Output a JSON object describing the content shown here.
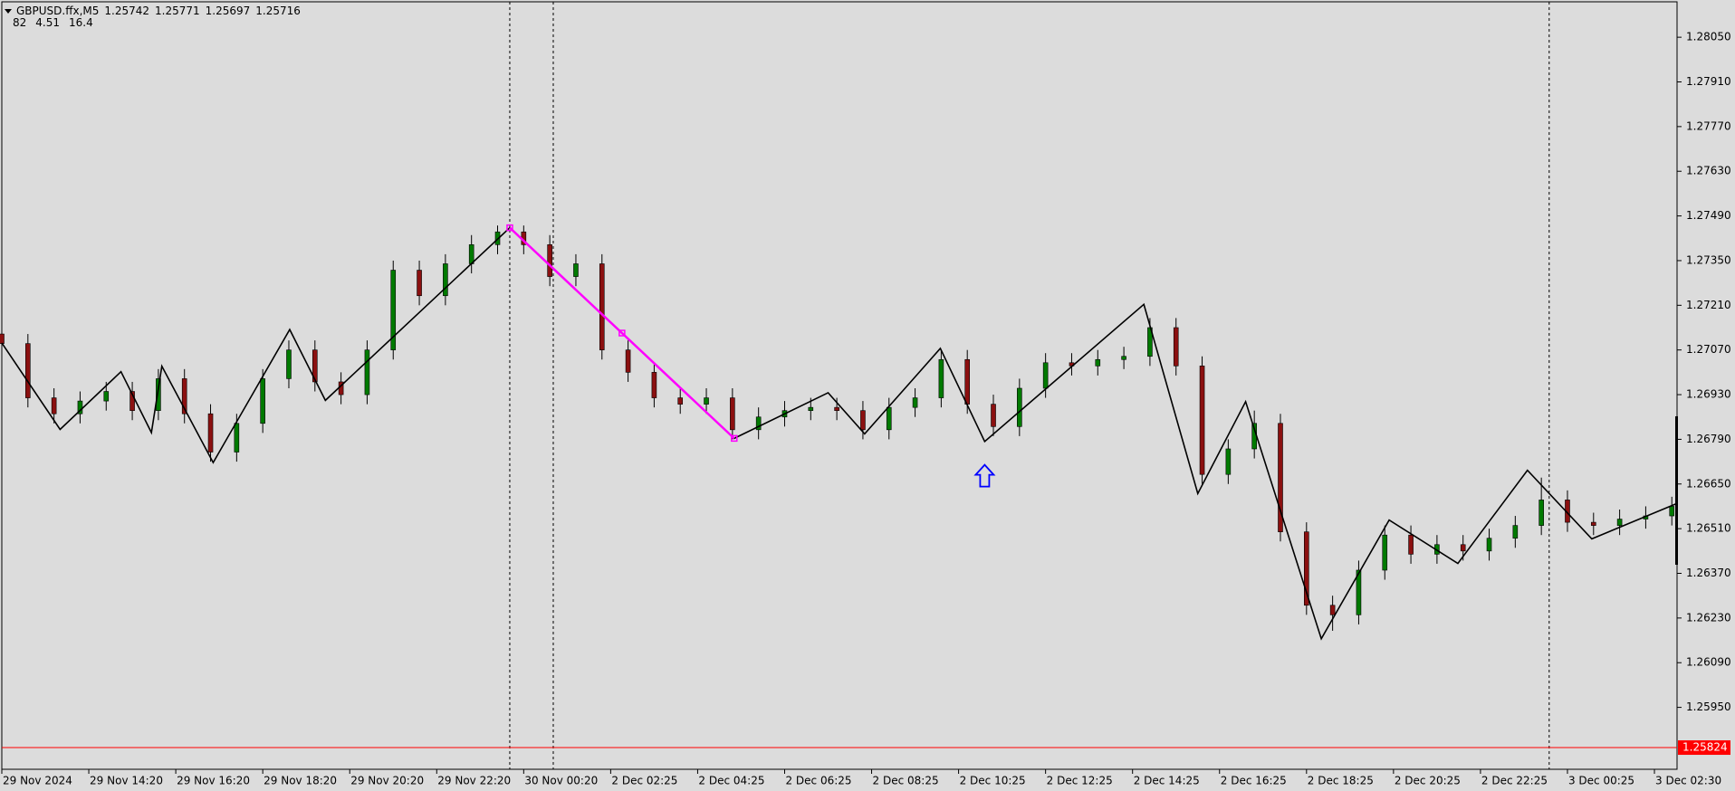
{
  "chart_data": {
    "type": "candlestick",
    "symbol": "GBPUSD.ffx,M5",
    "ohlc_text": [
      "1.25742",
      "1.25771",
      "1.25697",
      "1.25716"
    ],
    "indicator_text": [
      "82",
      "4.51",
      "16.4"
    ],
    "x": [
      0,
      0.3,
      0.6,
      0.9,
      1.2,
      1.5,
      1.8,
      2.1,
      2.4,
      2.7,
      3,
      3.3,
      3.6,
      3.9,
      4.2,
      4.5,
      4.8,
      5.1,
      5.4,
      5.7,
      6,
      6.3,
      6.6,
      6.9,
      7.2,
      7.5,
      7.8,
      8.1,
      8.4,
      8.7,
      9,
      9.3,
      9.6,
      9.9,
      10.2,
      10.5,
      10.8,
      11.1,
      11.4,
      11.7,
      12,
      12.3,
      12.6,
      12.9,
      13.2,
      13.5,
      13.8,
      14.1,
      14.4,
      14.7,
      15,
      15.3,
      15.6,
      15.9,
      16.2,
      16.5,
      16.8,
      17.1,
      17.4,
      17.7,
      18,
      18.3,
      18.6,
      18.9,
      19.2
    ],
    "open": [
      1.2712,
      1.2709,
      1.2692,
      1.2687,
      1.2691,
      1.2694,
      1.2688,
      1.2698,
      1.2687,
      1.2675,
      1.2684,
      1.2698,
      1.2707,
      1.2697,
      1.2693,
      1.2707,
      1.2732,
      1.2724,
      1.2734,
      1.274,
      1.2744,
      1.274,
      1.273,
      1.2734,
      1.2707,
      1.27,
      1.2692,
      1.269,
      1.2692,
      1.2682,
      1.2686,
      1.2688,
      1.2689,
      1.2688,
      1.2682,
      1.2689,
      1.2692,
      1.2704,
      1.269,
      1.2683,
      1.2695,
      1.2703,
      1.2702,
      1.2704,
      1.2705,
      1.2714,
      1.2702,
      1.2668,
      1.2676,
      1.2684,
      1.265,
      1.2627,
      1.2624,
      1.2638,
      1.2649,
      1.2643,
      1.2646,
      1.2644,
      1.2648,
      1.2652,
      1.266,
      1.2653,
      1.2652,
      1.2654,
      1.2655
    ],
    "high": [
      1.2715,
      1.2712,
      1.2695,
      1.2694,
      1.2697,
      1.2697,
      1.2701,
      1.2701,
      1.269,
      1.2687,
      1.2701,
      1.271,
      1.271,
      1.27,
      1.271,
      1.2735,
      1.2735,
      1.2737,
      1.2743,
      1.2746,
      1.2746,
      1.2743,
      1.2737,
      1.2737,
      1.271,
      1.2703,
      1.2695,
      1.2695,
      1.2695,
      1.2689,
      1.2691,
      1.2692,
      1.2692,
      1.2691,
      1.2692,
      1.2695,
      1.2707,
      1.2707,
      1.2693,
      1.2698,
      1.2706,
      1.2706,
      1.2707,
      1.2708,
      1.2717,
      1.2717,
      1.2705,
      1.2679,
      1.2688,
      1.2687,
      1.2653,
      1.263,
      1.2641,
      1.2652,
      1.2652,
      1.2649,
      1.2649,
      1.2651,
      1.2655,
      1.2667,
      1.2663,
      1.2656,
      1.2657,
      1.2658,
      1.2661
    ],
    "low": [
      1.2706,
      1.2689,
      1.2684,
      1.2684,
      1.2688,
      1.2685,
      1.2685,
      1.2684,
      1.2672,
      1.2672,
      1.2681,
      1.2695,
      1.2694,
      1.269,
      1.269,
      1.2704,
      1.2721,
      1.2721,
      1.2731,
      1.2737,
      1.2737,
      1.2727,
      1.2727,
      1.2704,
      1.2697,
      1.2689,
      1.2687,
      1.2687,
      1.2679,
      1.2679,
      1.2683,
      1.2685,
      1.2685,
      1.2679,
      1.2679,
      1.2686,
      1.2689,
      1.2687,
      1.268,
      1.268,
      1.2692,
      1.2699,
      1.2699,
      1.2701,
      1.2702,
      1.2699,
      1.2665,
      1.2665,
      1.2673,
      1.2647,
      1.2624,
      1.2619,
      1.2621,
      1.2635,
      1.264,
      1.264,
      1.2641,
      1.2641,
      1.2645,
      1.2649,
      1.265,
      1.2649,
      1.2649,
      1.2651,
      1.2652
    ],
    "close": [
      1.2709,
      1.2692,
      1.2687,
      1.2691,
      1.2694,
      1.2688,
      1.2698,
      1.2687,
      1.2675,
      1.2684,
      1.2698,
      1.2707,
      1.2697,
      1.2693,
      1.2707,
      1.2732,
      1.2724,
      1.2734,
      1.274,
      1.2744,
      1.274,
      1.273,
      1.2734,
      1.2707,
      1.27,
      1.2692,
      1.269,
      1.2692,
      1.2682,
      1.2686,
      1.2688,
      1.2689,
      1.2688,
      1.2682,
      1.2689,
      1.2692,
      1.2704,
      1.269,
      1.2683,
      1.2695,
      1.2703,
      1.2702,
      1.2704,
      1.2705,
      1.2714,
      1.2702,
      1.2668,
      1.2676,
      1.2684,
      1.265,
      1.2627,
      1.2624,
      1.2638,
      1.2649,
      1.2643,
      1.2646,
      1.2644,
      1.2648,
      1.2652,
      1.266,
      1.2653,
      1.2652,
      1.2654,
      1.2655,
      1.2658
    ],
    "up_color": "#007a00",
    "down_color": "#8b1010",
    "zigzag": {
      "color": "#000000",
      "x": [
        0,
        0.67,
        1.37,
        1.72,
        1.84,
        2.43,
        3.31,
        3.72,
        5.84,
        8.42,
        9.5,
        9.92,
        10.79,
        11.3,
        13.13,
        13.75,
        14.3,
        15.17,
        15.95,
        16.74,
        17.54,
        18.28,
        19.26
      ],
      "y": [
        1.27092,
        1.26821,
        1.27002,
        1.26811,
        1.27019,
        1.26717,
        1.27134,
        1.26912,
        1.27453,
        1.26793,
        1.26936,
        1.26807,
        1.27075,
        1.26783,
        1.27213,
        1.2662,
        1.26908,
        1.26165,
        1.26537,
        1.26401,
        1.26693,
        1.26478,
        1.26589
      ]
    },
    "highlight": {
      "color": "#ff00ff",
      "from": 8,
      "to": 9
    },
    "signals": [
      {
        "x": 11.3,
        "y": 1.2671,
        "color": "#0000ff"
      }
    ],
    "vlines": [
      5.84,
      6.34,
      17.79
    ],
    "price_line": {
      "value": 1.25824,
      "color": "#ff0000"
    },
    "xlim": [
      0,
      19.26
    ],
    "xticks": [
      {
        "value": 0,
        "label": "29 Nov 2024"
      },
      {
        "value": 1,
        "label": "29 Nov 14:20"
      },
      {
        "value": 2,
        "label": "29 Nov 16:20"
      },
      {
        "value": 3,
        "label": "29 Nov 18:20"
      },
      {
        "value": 4,
        "label": "29 Nov 20:20"
      },
      {
        "value": 5,
        "label": "29 Nov 22:20"
      },
      {
        "value": 6,
        "label": "30 Nov 00:20"
      },
      {
        "value": 7,
        "label": "2 Dec 02:25"
      },
      {
        "value": 8,
        "label": "2 Dec 04:25"
      },
      {
        "value": 9,
        "label": "2 Dec 06:25"
      },
      {
        "value": 10,
        "label": "2 Dec 08:25"
      },
      {
        "value": 11,
        "label": "2 Dec 10:25"
      },
      {
        "value": 12,
        "label": "2 Dec 12:25"
      },
      {
        "value": 13,
        "label": "2 Dec 14:25"
      },
      {
        "value": 14,
        "label": "2 Dec 16:25"
      },
      {
        "value": 15,
        "label": "2 Dec 18:25"
      },
      {
        "value": 16,
        "label": "2 Dec 20:25"
      },
      {
        "value": 17,
        "label": "2 Dec 22:25"
      },
      {
        "value": 18,
        "label": "3 Dec 00:25"
      },
      {
        "value": 19,
        "label": "3 Dec 02:30"
      }
    ],
    "ylim": [
      1.25756,
      1.28161
    ],
    "yticks": [
      {
        "value": 1.2805,
        "label": "1.28050"
      },
      {
        "value": 1.2791,
        "label": "1.27910"
      },
      {
        "value": 1.2777,
        "label": "1.27770"
      },
      {
        "value": 1.2763,
        "label": "1.27630"
      },
      {
        "value": 1.2749,
        "label": "1.27490"
      },
      {
        "value": 1.2735,
        "label": "1.27350"
      },
      {
        "value": 1.2721,
        "label": "1.27210"
      },
      {
        "value": 1.2707,
        "label": "1.27070"
      },
      {
        "value": 1.2693,
        "label": "1.26930"
      },
      {
        "value": 1.2679,
        "label": "1.26790"
      },
      {
        "value": 1.2665,
        "label": "1.26650"
      },
      {
        "value": 1.2651,
        "label": "1.26510"
      },
      {
        "value": 1.2637,
        "label": "1.26370"
      },
      {
        "value": 1.2623,
        "label": "1.26230"
      },
      {
        "value": 1.2609,
        "label": "1.26090"
      },
      {
        "value": 1.2595,
        "label": "1.25950"
      }
    ],
    "grid": false
  }
}
